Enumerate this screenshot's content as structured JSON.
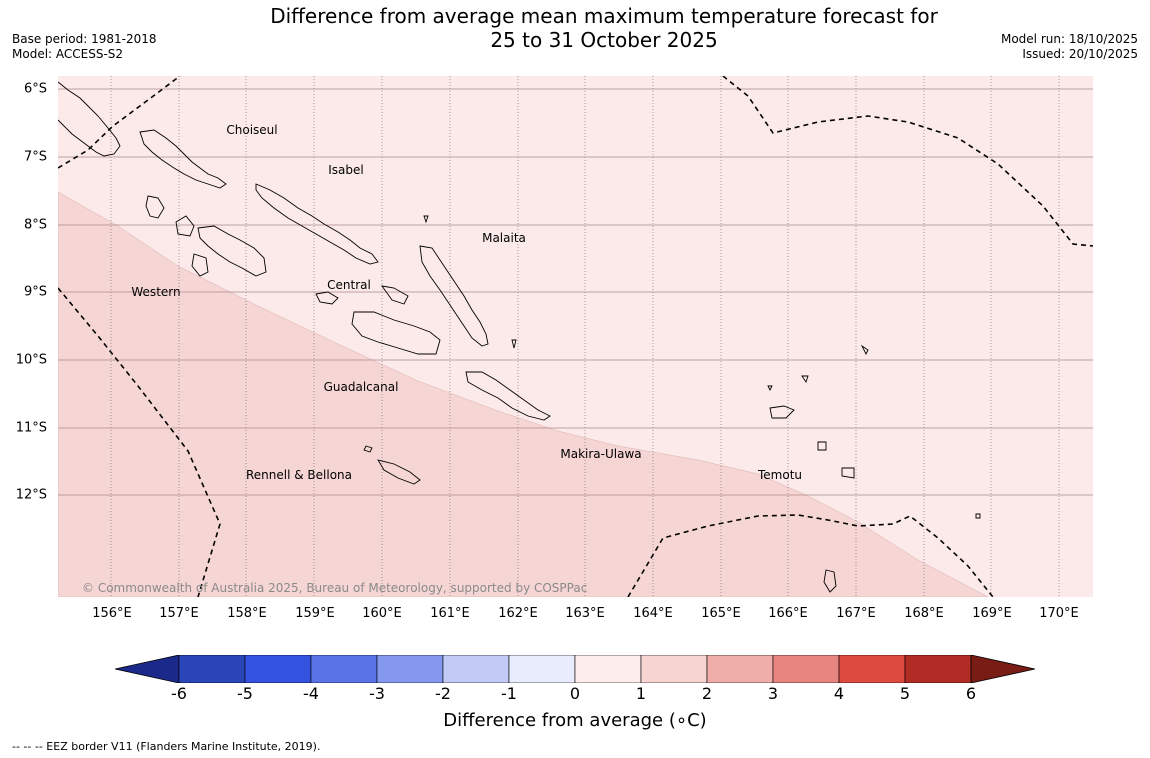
{
  "title": {
    "line1": "Difference from average mean maximum temperature forecast for",
    "line2": "25 to 31 October 2025"
  },
  "meta": {
    "base_period": "Base period: 1981-2018",
    "model": "Model: ACCESS-S2",
    "model_run": "Model run: 18/10/2025",
    "issued": "Issued: 20/10/2025"
  },
  "map": {
    "lat_labels": [
      "6°S",
      "7°S",
      "8°S",
      "9°S",
      "10°S",
      "11°S",
      "12°S"
    ],
    "lon_labels": [
      "156°E",
      "157°E",
      "158°E",
      "159°E",
      "160°E",
      "161°E",
      "162°E",
      "163°E",
      "164°E",
      "165°E",
      "166°E",
      "167°E",
      "168°E",
      "169°E",
      "170°E"
    ],
    "province_labels": {
      "choiseul": "Choiseul",
      "isabel": "Isabel",
      "malaita": "Malaita",
      "western": "Western",
      "central": "Central",
      "guadalcanal": "Guadalcanal",
      "makira": "Makira-Ulawa",
      "rennell": "Rennell & Bellona",
      "temotu": "Temotu"
    },
    "copyright": "© Commonwealth of Australia 2025, Bureau of Meteorology, supported by COSPPac",
    "fill_zone_1_2": "#f6d6d4",
    "fill_zone_0_1": "#fbeae9"
  },
  "colorbar": {
    "ticks": [
      "-6",
      "-5",
      "-4",
      "-3",
      "-2",
      "-1",
      "0",
      "1",
      "2",
      "3",
      "4",
      "5",
      "6"
    ],
    "colors": [
      "#1b2a8a",
      "#2a45b8",
      "#3452e0",
      "#5a74e6",
      "#8598ef",
      "#c2caf6",
      "#e8ecfc",
      "#fdeeee",
      "#f7d3d1",
      "#efaeaa",
      "#e78680",
      "#dc4a40",
      "#b02c24",
      "#7a1c16"
    ],
    "label": "Difference from average (∘C)"
  },
  "footer": "--  --  -- EEZ border V11 (Flanders Marine Institute, 2019)."
}
